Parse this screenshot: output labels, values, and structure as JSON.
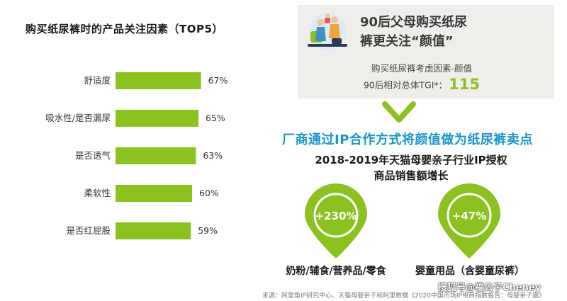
{
  "chart_data": {
    "type": "bar",
    "orientation": "horizontal",
    "title": "购买纸尿裤时的产品关注因素（TOP5）",
    "categories": [
      "舒适度",
      "吸水性/是否漏尿",
      "是否透气",
      "柔软性",
      "是否红屁股"
    ],
    "values": [
      67,
      65,
      63,
      60,
      59
    ],
    "value_labels": [
      "67%",
      "65%",
      "63%",
      "60%",
      "59%"
    ],
    "unit": "%",
    "xlim": [
      0,
      100
    ],
    "grid": false,
    "bar_color": "#8cc21f"
  },
  "info_box": {
    "title_line1": "90后父母购买纸尿",
    "title_line2": "裤更关注“颜值”",
    "subtitle": "购买纸尿裤考虑因素-颜值",
    "tgi_label": "90后相对总体TGI*：",
    "tgi_value": "115"
  },
  "headline": "厂商通过IP合作方式将颜值做为纸尿裤卖点",
  "subhead_line1": "2018-2019年天猫母婴亲子行业IP授权",
  "subhead_line2": "商品销售额增长",
  "growth": [
    {
      "value": "+230%",
      "category": "奶粉/辅食/营养品/零食"
    },
    {
      "value": "+47%",
      "category": "婴童用品（含婴童尿裤）"
    }
  ],
  "source": "来源：阿里鱼IP研究中心、天猫母婴亲子和阿里数据《2020中国市场IP电商指数报告：母婴亲子篇》",
  "watermark": "搜狐号@福公子Cheney",
  "colors": {
    "accent_green": "#8cc21f",
    "headline_blue": "#1c96c9",
    "box_bg": "#efeeea"
  }
}
